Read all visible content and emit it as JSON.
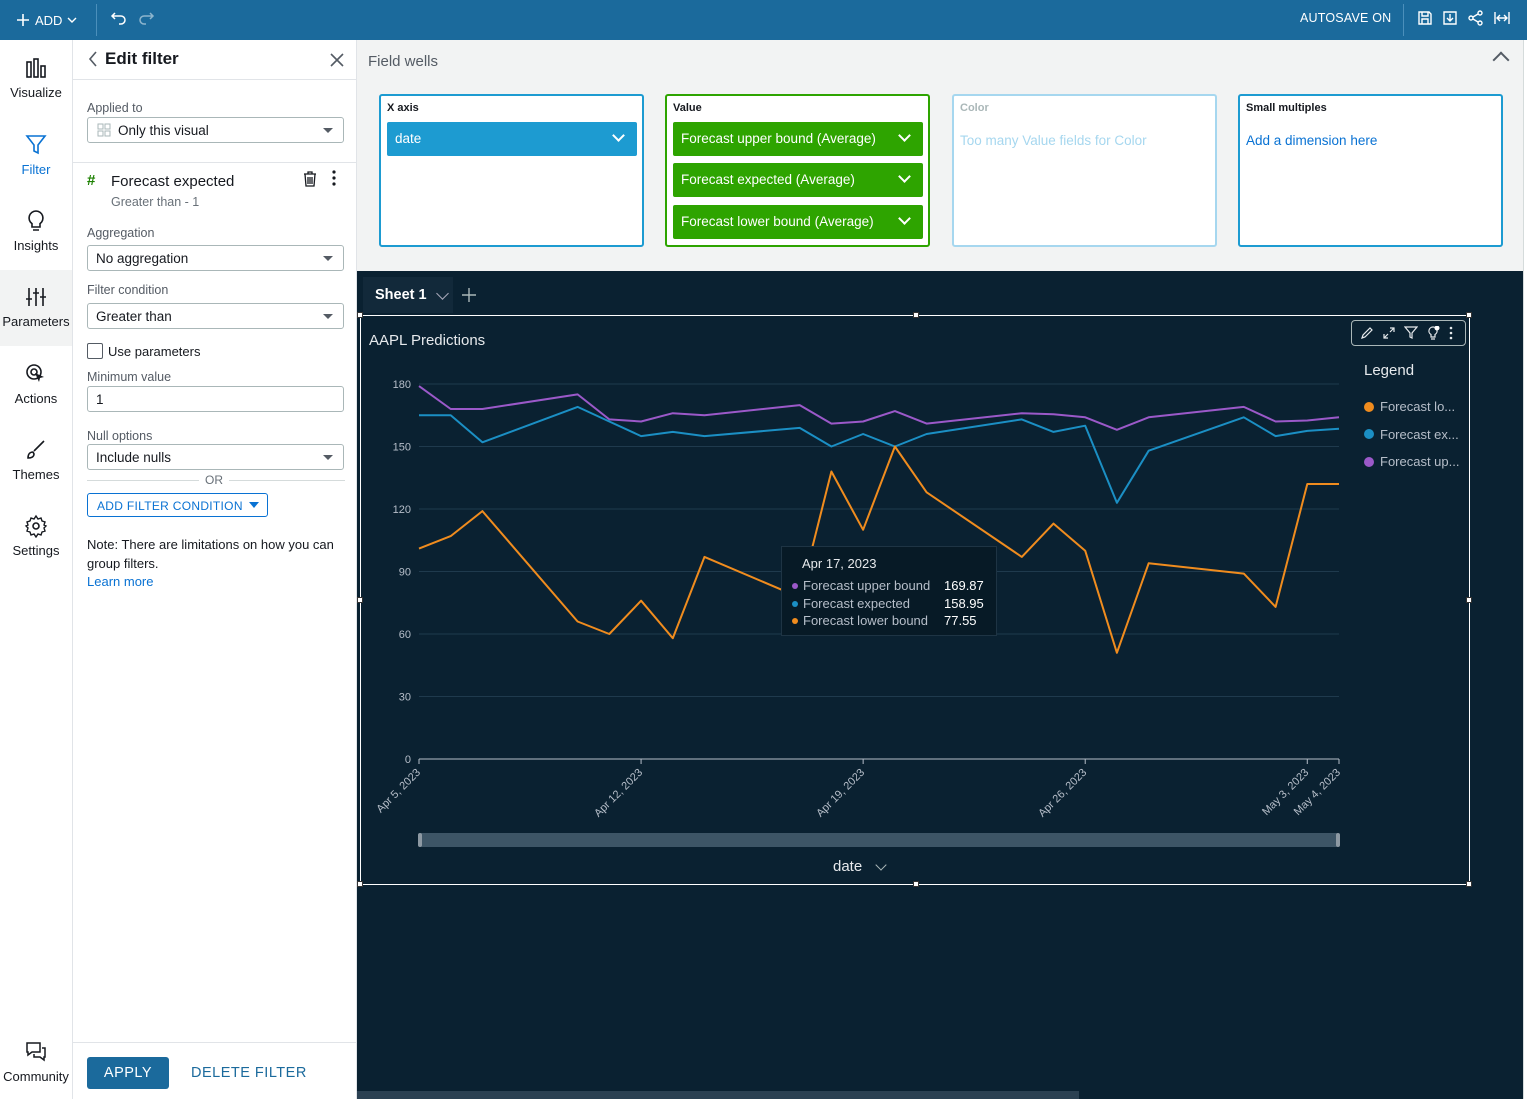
{
  "topbar": {
    "add_label": "ADD",
    "autosave_label": "AUTOSAVE ON"
  },
  "nav": {
    "items": [
      {
        "label": "Visualize",
        "icon": "bar-chart-icon"
      },
      {
        "label": "Filter",
        "icon": "filter-icon"
      },
      {
        "label": "Insights",
        "icon": "lightbulb-icon"
      },
      {
        "label": "Parameters",
        "icon": "sliders-icon"
      },
      {
        "label": "Actions",
        "icon": "cursor-click-icon"
      },
      {
        "label": "Themes",
        "icon": "brush-icon"
      },
      {
        "label": "Settings",
        "icon": "gear-icon"
      },
      {
        "label": "Community",
        "icon": "chat-icon"
      }
    ]
  },
  "filter_panel": {
    "title": "Edit filter",
    "applied_to_label": "Applied to",
    "applied_to_value": "Only this visual",
    "filter_name": "Forecast expected",
    "filter_summary": "Greater than - 1",
    "aggregation_label": "Aggregation",
    "aggregation_value": "No aggregation",
    "condition_label": "Filter condition",
    "condition_value": "Greater than",
    "use_parameters_label": "Use parameters",
    "min_value_label": "Minimum value",
    "min_value": "1",
    "null_options_label": "Null options",
    "null_options_value": "Include nulls",
    "or_label": "OR",
    "add_condition_label": "ADD FILTER CONDITION",
    "note": "Note: There are limitations on how you can group filters.",
    "learn_more": "Learn more",
    "apply_label": "APPLY",
    "delete_label": "DELETE FILTER"
  },
  "field_wells": {
    "title": "Field wells",
    "x_axis": {
      "title": "X axis",
      "fields": [
        "date"
      ]
    },
    "value": {
      "title": "Value",
      "fields": [
        "Forecast upper bound (Average)",
        "Forecast expected (Average)",
        "Forecast lower bound (Average)"
      ]
    },
    "color": {
      "title": "Color",
      "placeholder": "Too many Value fields for Color"
    },
    "small_multiples": {
      "title": "Small multiples",
      "placeholder": "Add a dimension here"
    }
  },
  "colors": {
    "accent": "#0972d3",
    "topbar": "#1b6a9c",
    "xaxis_well": "#1d9bd1",
    "value_well": "#2ea400",
    "upper": "#9b59c9",
    "expected": "#1b8fc4",
    "lower": "#f08c1e"
  },
  "sheet": {
    "tab_label": "Sheet 1"
  },
  "visual": {
    "title": "AAPL Predictions",
    "legend_title": "Legend",
    "legend_items": [
      "Forecast lo...",
      "Forecast ex...",
      "Forecast up..."
    ],
    "x_field_label": "date",
    "tooltip": {
      "date": "Apr 17, 2023",
      "rows": [
        {
          "name": "Forecast upper bound",
          "value": "169.87"
        },
        {
          "name": "Forecast expected",
          "value": "158.95"
        },
        {
          "name": "Forecast lower bound",
          "value": "77.55"
        }
      ]
    }
  },
  "chart_data": {
    "type": "line",
    "title": "AAPL Predictions",
    "xlabel": "date",
    "ylabel": "",
    "ylim": [
      0,
      180
    ],
    "yticks": [
      0,
      30,
      60,
      90,
      120,
      150,
      180
    ],
    "xticks": [
      "Apr 5, 2023",
      "Apr 12, 2023",
      "Apr 19, 2023",
      "Apr 26, 2023",
      "May 3, 2023",
      "May 4, 2023"
    ],
    "x": [
      "2023-04-05",
      "2023-04-06",
      "2023-04-07",
      "2023-04-10",
      "2023-04-11",
      "2023-04-12",
      "2023-04-13",
      "2023-04-14",
      "2023-04-17",
      "2023-04-18",
      "2023-04-19",
      "2023-04-20",
      "2023-04-21",
      "2023-04-24",
      "2023-04-25",
      "2023-04-26",
      "2023-04-27",
      "2023-04-28",
      "2023-05-01",
      "2023-05-02",
      "2023-05-03",
      "2023-05-04"
    ],
    "series": [
      {
        "name": "Forecast upper bound",
        "color": "#9b59c9",
        "values": [
          179,
          168,
          168,
          175,
          163,
          162,
          166,
          165,
          169.87,
          161,
          162,
          167,
          161,
          166,
          165.5,
          164,
          158,
          164,
          169,
          162,
          162.5,
          164
        ]
      },
      {
        "name": "Forecast expected",
        "color": "#1b8fc4",
        "values": [
          165,
          165,
          152,
          169,
          162,
          155,
          157,
          155,
          158.95,
          150,
          156,
          150,
          156,
          163,
          157,
          160,
          123,
          148,
          164,
          155,
          157.5,
          158.5
        ]
      },
      {
        "name": "Forecast lower bound",
        "color": "#f08c1e",
        "values": [
          101,
          107,
          119,
          66,
          60,
          76,
          58,
          97,
          77.55,
          138,
          110,
          150,
          128,
          97,
          113,
          100,
          51,
          94,
          89,
          73,
          132,
          132
        ]
      }
    ],
    "legend": "right"
  }
}
